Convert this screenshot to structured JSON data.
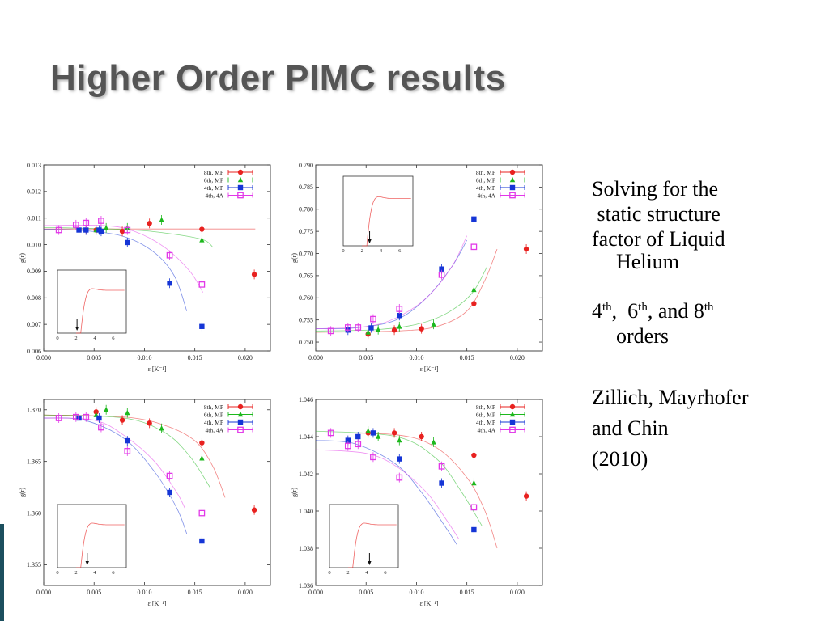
{
  "slide": {
    "title": "Higher Order PIMC results"
  },
  "sidebar": {
    "p1_line1": "Solving for the",
    "p1_line2": " static structure",
    "p1_line3": "factor of Liquid",
    "p1_line4": "Helium",
    "p2_n1": "4",
    "p2_th1": "th",
    "p2_sep1": ",  ",
    "p2_n2": "6",
    "p2_th2": "th",
    "p2_sep2": ", and ",
    "p2_n3": "8",
    "p2_th3": "th",
    "p2_line2": "orders",
    "p3_line1": "Zillich, Mayrhofer",
    "p3_line2": "and Chin",
    "p3_line3": "(2010)"
  },
  "chart_data": [
    {
      "type": "scatter",
      "xlabel": "ε [K⁻¹]",
      "ylabel": "g(r)",
      "xlim": [
        0,
        0.0225
      ],
      "ylim": [
        0.006,
        0.013
      ],
      "xticks": [
        "0.000",
        "0.005",
        "0.010",
        "0.015",
        "0.020"
      ],
      "yticks": [
        "0.006",
        "0.007",
        "0.008",
        "0.009",
        "0.010",
        "0.011",
        "0.012",
        "0.013"
      ],
      "legend_position": "top-right",
      "series": [
        {
          "name": "8th, MP",
          "color": "#e8211f",
          "marker": "circle",
          "x": [
            0.0042,
            0.0052,
            0.0078,
            0.0105,
            0.0157,
            0.0209
          ],
          "y": [
            0.01055,
            0.01055,
            0.0105,
            0.0108,
            0.01058,
            0.00888
          ],
          "fit_x": [
            0.0,
            0.021
          ],
          "fit_y": [
            0.01059,
            0.01059
          ]
        },
        {
          "name": "6th, MP",
          "color": "#1db81d",
          "marker": "triangle",
          "x": [
            0.0052,
            0.0062,
            0.0083,
            0.0117,
            0.0157
          ],
          "y": [
            0.01055,
            0.01063,
            0.01063,
            0.01093,
            0.01017
          ],
          "fit_x": [
            0.0,
            0.008,
            0.012,
            0.0157,
            0.0168
          ],
          "fit_y": [
            0.01065,
            0.01057,
            0.01044,
            0.0102,
            0.0099
          ]
        },
        {
          "name": "4th, MP",
          "color": "#1535d6",
          "marker": "square",
          "x": [
            0.0035,
            0.0042,
            0.0055,
            0.0057,
            0.0083,
            0.0125,
            0.0157
          ],
          "y": [
            0.01055,
            0.01055,
            0.01055,
            0.0105,
            0.01008,
            0.00855,
            0.00692
          ],
          "fit_x": [
            0.0,
            0.004,
            0.008,
            0.011,
            0.013,
            0.0142
          ],
          "fit_y": [
            0.01058,
            0.01053,
            0.0103,
            0.0097,
            0.0088,
            0.0075
          ]
        },
        {
          "name": "4th, 4A",
          "color": "#e238e8",
          "marker": "open-square",
          "x": [
            0.0015,
            0.0032,
            0.0042,
            0.0057,
            0.0083,
            0.0125,
            0.0157
          ],
          "y": [
            0.01055,
            0.01075,
            0.01082,
            0.0109,
            0.01055,
            0.0096,
            0.0085
          ],
          "fit_x": [
            0.0,
            0.006,
            0.009,
            0.012,
            0.0145,
            0.0158
          ],
          "fit_y": [
            0.01072,
            0.01072,
            0.0105,
            0.0099,
            0.009,
            0.0082
          ]
        }
      ],
      "inset": {
        "xticks": [
          "0",
          "2",
          "4",
          "6"
        ],
        "arrow_x": 2.1
      }
    },
    {
      "type": "scatter",
      "xlabel": "ε [K⁻¹]",
      "ylabel": "g(r)",
      "xlim": [
        0,
        0.0225
      ],
      "ylim": [
        0.748,
        0.79
      ],
      "xticks": [
        "0.000",
        "0.005",
        "0.010",
        "0.015",
        "0.020"
      ],
      "yticks": [
        "0.750",
        "0.755",
        "0.760",
        "0.765",
        "0.770",
        "0.775",
        "0.780",
        "0.785",
        "0.790"
      ],
      "legend_position": "top-right",
      "series": [
        {
          "name": "8th, MP",
          "color": "#e8211f",
          "marker": "circle",
          "x": [
            0.0052,
            0.0078,
            0.0105,
            0.0157,
            0.0209
          ],
          "y": [
            0.7518,
            0.7527,
            0.753,
            0.7587,
            0.771
          ],
          "fit_x": [
            0.0,
            0.008,
            0.012,
            0.015,
            0.0168,
            0.018
          ],
          "fit_y": [
            0.7522,
            0.7525,
            0.7535,
            0.757,
            0.764,
            0.771
          ]
        },
        {
          "name": "6th, MP",
          "color": "#1db81d",
          "marker": "triangle",
          "x": [
            0.0052,
            0.0062,
            0.0083,
            0.0117,
            0.0157
          ],
          "y": [
            0.7522,
            0.7528,
            0.7535,
            0.754,
            0.7618
          ],
          "fit_x": [
            0.0,
            0.006,
            0.01,
            0.013,
            0.0155,
            0.017
          ],
          "fit_y": [
            0.7525,
            0.7528,
            0.754,
            0.7565,
            0.761,
            0.767
          ]
        },
        {
          "name": "4th, MP",
          "color": "#1535d6",
          "marker": "square",
          "x": [
            0.0032,
            0.0055,
            0.0083,
            0.0125,
            0.0157
          ],
          "y": [
            0.7527,
            0.7532,
            0.756,
            0.7665,
            0.7778
          ],
          "fit_x": [
            0.0,
            0.004,
            0.008,
            0.011,
            0.0135,
            0.015
          ],
          "fit_y": [
            0.753,
            0.7532,
            0.755,
            0.76,
            0.767,
            0.773
          ]
        },
        {
          "name": "4th, 4A",
          "color": "#e238e8",
          "marker": "open-square",
          "x": [
            0.0015,
            0.0032,
            0.0042,
            0.0057,
            0.0083,
            0.0125,
            0.0157
          ],
          "y": [
            0.7525,
            0.7533,
            0.7533,
            0.7552,
            0.7575,
            0.7652,
            0.7715
          ],
          "fit_x": [
            0.0,
            0.005,
            0.008,
            0.011,
            0.0135,
            0.015
          ],
          "fit_y": [
            0.753,
            0.7535,
            0.7555,
            0.76,
            0.767,
            0.774
          ]
        }
      ],
      "inset": {
        "xticks": [
          "0",
          "2",
          "4",
          "6"
        ],
        "arrow_x": 2.8
      }
    },
    {
      "type": "scatter",
      "xlabel": "ε [K⁻¹]",
      "ylabel": "g(r)",
      "xlim": [
        0,
        0.0225
      ],
      "ylim": [
        1.353,
        1.371
      ],
      "xticks": [
        "0.000",
        "0.005",
        "0.010",
        "0.015",
        "0.020"
      ],
      "yticks": [
        "1.355",
        "1.360",
        "1.365",
        "1.370"
      ],
      "legend_position": "top-right",
      "series": [
        {
          "name": "8th, MP",
          "color": "#e8211f",
          "marker": "circle",
          "x": [
            0.0052,
            0.0078,
            0.0105,
            0.0157,
            0.0209
          ],
          "y": [
            1.3698,
            1.369,
            1.3687,
            1.3668,
            1.3603
          ],
          "fit_x": [
            0.0,
            0.008,
            0.012,
            0.015,
            0.0168,
            0.018
          ],
          "fit_y": [
            1.3695,
            1.3693,
            1.3685,
            1.367,
            1.3645,
            1.3615
          ]
        },
        {
          "name": "6th, MP",
          "color": "#1db81d",
          "marker": "triangle",
          "x": [
            0.0052,
            0.0062,
            0.0083,
            0.0117,
            0.0157
          ],
          "y": [
            1.3695,
            1.37,
            1.3697,
            1.3682,
            1.3653
          ],
          "fit_x": [
            0.0,
            0.008,
            0.012,
            0.0145,
            0.0165
          ],
          "fit_y": [
            1.3695,
            1.3692,
            1.3678,
            1.3655,
            1.3625
          ]
        },
        {
          "name": "4th, MP",
          "color": "#1535d6",
          "marker": "square",
          "x": [
            0.0035,
            0.0055,
            0.0083,
            0.0125,
            0.0157
          ],
          "y": [
            1.3692,
            1.3692,
            1.367,
            1.362,
            1.3573
          ],
          "fit_x": [
            0.0,
            0.004,
            0.008,
            0.011,
            0.0132,
            0.0142
          ],
          "fit_y": [
            1.3692,
            1.369,
            1.3672,
            1.364,
            1.3605,
            1.358
          ]
        },
        {
          "name": "4th, 4A",
          "color": "#e238e8",
          "marker": "open-square",
          "x": [
            0.0015,
            0.0032,
            0.0042,
            0.0057,
            0.0083,
            0.0125,
            0.0157
          ],
          "y": [
            1.3692,
            1.3693,
            1.3693,
            1.3683,
            1.366,
            1.3636,
            1.36
          ],
          "fit_x": [
            0.0,
            0.005,
            0.008,
            0.011,
            0.0132,
            0.014
          ],
          "fit_y": [
            1.3692,
            1.369,
            1.3675,
            1.365,
            1.362,
            1.3605
          ]
        }
      ],
      "inset": {
        "xticks": [
          "0",
          "2",
          "4",
          "6"
        ],
        "arrow_x": 3.2
      }
    },
    {
      "type": "scatter",
      "xlabel": "ε [K⁻¹]",
      "ylabel": "g(r)",
      "xlim": [
        0,
        0.0225
      ],
      "ylim": [
        1.036,
        1.046
      ],
      "xticks": [
        "0.000",
        "0.005",
        "0.010",
        "0.015",
        "0.020"
      ],
      "yticks": [
        "1.036",
        "1.038",
        "1.040",
        "1.042",
        "1.044",
        "1.046"
      ],
      "legend_position": "top-right",
      "series": [
        {
          "name": "8th, MP",
          "color": "#e8211f",
          "marker": "circle",
          "x": [
            0.0052,
            0.0078,
            0.0105,
            0.0157,
            0.0209
          ],
          "y": [
            1.0442,
            1.0442,
            1.044,
            1.043,
            1.0408
          ],
          "fit_x": [
            0.0,
            0.008,
            0.012,
            0.015,
            0.0168,
            0.018
          ],
          "fit_y": [
            1.0442,
            1.0441,
            1.0434,
            1.0418,
            1.04,
            1.038
          ]
        },
        {
          "name": "6th, MP",
          "color": "#1db81d",
          "marker": "triangle",
          "x": [
            0.0052,
            0.0062,
            0.0083,
            0.0117,
            0.0157
          ],
          "y": [
            1.0443,
            1.044,
            1.0438,
            1.0437,
            1.0415
          ],
          "fit_x": [
            0.0,
            0.008,
            0.012,
            0.0145,
            0.0165
          ],
          "fit_y": [
            1.0443,
            1.044,
            1.0428,
            1.041,
            1.0392
          ]
        },
        {
          "name": "4th, MP",
          "color": "#1535d6",
          "marker": "square",
          "x": [
            0.0032,
            0.0042,
            0.0057,
            0.0083,
            0.0125,
            0.0157
          ],
          "y": [
            1.0438,
            1.044,
            1.0442,
            1.0428,
            1.0415,
            1.039
          ],
          "fit_x": [
            0.0,
            0.004,
            0.008,
            0.0105,
            0.0128,
            0.014
          ],
          "fit_y": [
            1.0438,
            1.0436,
            1.0425,
            1.041,
            1.0392,
            1.0382
          ]
        },
        {
          "name": "4th, 4A",
          "color": "#e238e8",
          "marker": "open-square",
          "x": [
            0.0015,
            0.0032,
            0.0042,
            0.0057,
            0.0083,
            0.0125,
            0.0157
          ],
          "y": [
            1.0442,
            1.0435,
            1.0436,
            1.0429,
            1.0418,
            1.0424,
            1.0402
          ],
          "fit_x": [
            0.0,
            0.005,
            0.008,
            0.011,
            0.013,
            0.0142
          ],
          "fit_y": [
            1.0433,
            1.0431,
            1.0424,
            1.041,
            1.0395,
            1.0385
          ]
        }
      ],
      "inset": {
        "xticks": [
          "0",
          "2",
          "4",
          "6"
        ],
        "arrow_x": 4.3
      }
    }
  ]
}
